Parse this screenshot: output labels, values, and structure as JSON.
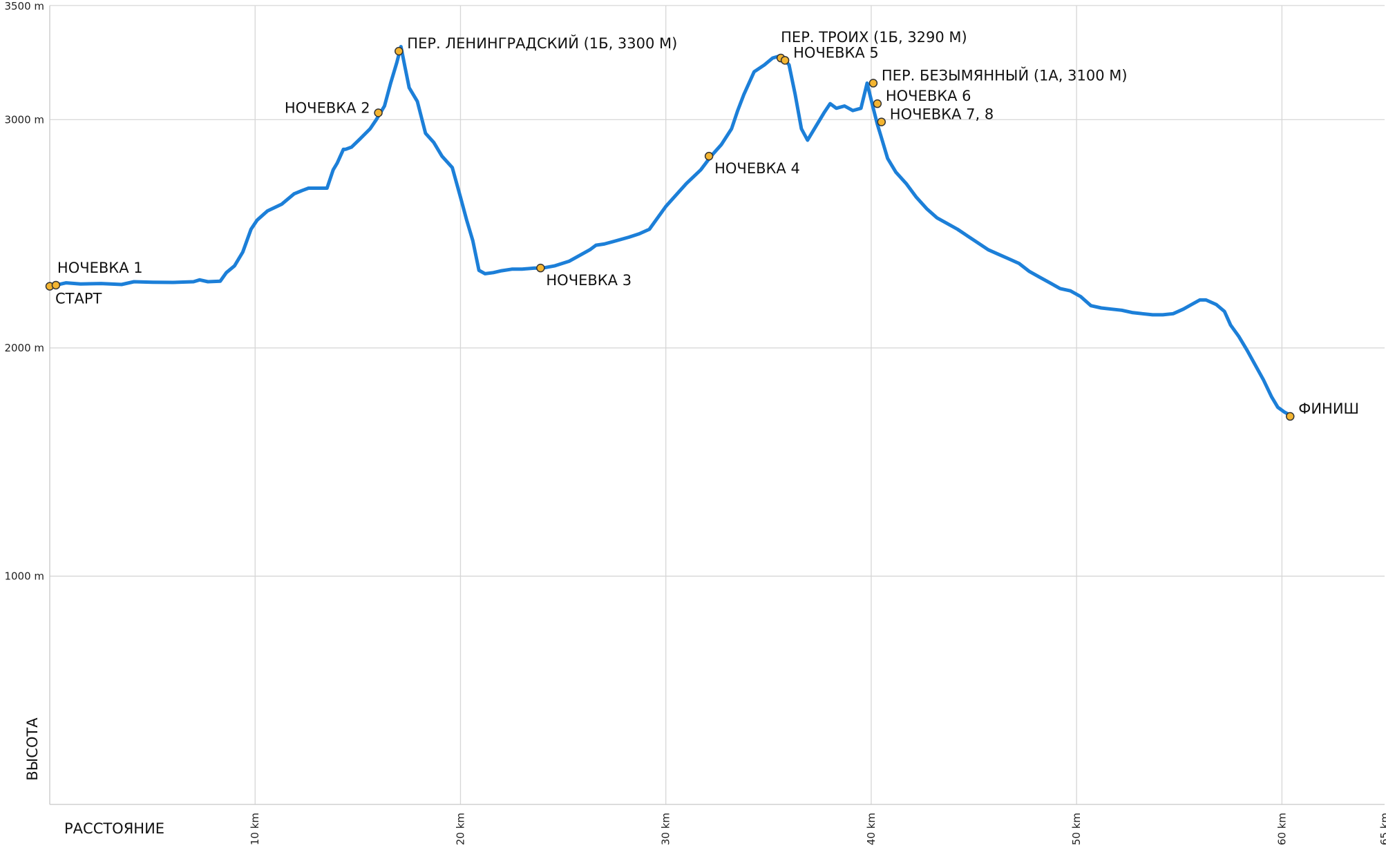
{
  "chart_data": {
    "type": "line",
    "title": "",
    "xlabel": "РАССТОЯНИЕ",
    "ylabel": "ВЫСОТА",
    "xlim": [
      0,
      65
    ],
    "ylim": [
      0,
      3500
    ],
    "x_ticks": [
      {
        "value": 10,
        "label": "10 km"
      },
      {
        "value": 20,
        "label": "20 km"
      },
      {
        "value": 30,
        "label": "30 km"
      },
      {
        "value": 40,
        "label": "40 km"
      },
      {
        "value": 50,
        "label": "50 km"
      },
      {
        "value": 60,
        "label": "60 km"
      },
      {
        "value": 65,
        "label": "65 km"
      }
    ],
    "y_ticks": [
      {
        "value": 1000,
        "label": "1000 m"
      },
      {
        "value": 2000,
        "label": "2000 m"
      },
      {
        "value": 3000,
        "label": "3000 m"
      },
      {
        "value": 3500,
        "label": "3500 m"
      }
    ],
    "grid": true,
    "series": [
      {
        "color": "#1c7fd8",
        "x": [
          0,
          0.3,
          0.8,
          1.5,
          2.5,
          3.5,
          4.1,
          5.0,
          6.0,
          7.0,
          7.3,
          7.7,
          8.3,
          8.6,
          9.0,
          9.4,
          9.8,
          10.1,
          10.6,
          11.3,
          11.9,
          12.3,
          12.6,
          13.0,
          13.5,
          13.8,
          14.0,
          14.3,
          14.4,
          14.7,
          15.1,
          15.6,
          15.9,
          16.3,
          16.6,
          16.9,
          17.1,
          17.3,
          17.5,
          17.9,
          18.3,
          18.7,
          19.1,
          19.6,
          20.0,
          20.3,
          20.6,
          20.9,
          21.2,
          21.6,
          22.0,
          22.5,
          23.0,
          23.6,
          24.0,
          24.6,
          25.3,
          25.9,
          26.3,
          26.6,
          27.0,
          27.6,
          28.2,
          28.7,
          29.2,
          29.6,
          30.0,
          30.6,
          31.0,
          31.7,
          32.2,
          32.7,
          33.2,
          33.5,
          33.8,
          34.3,
          34.8,
          35.2,
          35.6,
          35.8,
          36.0,
          36.3,
          36.6,
          36.9,
          37.3,
          37.7,
          38.0,
          38.3,
          38.7,
          39.1,
          39.5,
          39.8,
          40.1,
          40.3,
          40.5,
          40.8,
          41.2,
          41.7,
          42.2,
          42.7,
          43.2,
          43.7,
          44.2,
          44.7,
          45.2,
          45.7,
          46.2,
          46.7,
          47.2,
          47.7,
          48.2,
          48.7,
          49.2,
          49.7,
          50.2,
          50.7,
          51.2,
          51.7,
          52.2,
          52.7,
          53.2,
          53.7,
          54.2,
          54.7,
          55.2,
          55.6,
          56.0,
          56.3,
          56.8,
          57.2,
          57.5,
          57.9,
          58.3,
          58.7,
          59.1,
          59.5,
          59.8,
          60.1,
          60.3,
          60.4
        ],
        "y": [
          2270,
          2275,
          2285,
          2280,
          2282,
          2278,
          2290,
          2288,
          2287,
          2290,
          2298,
          2290,
          2292,
          2330,
          2360,
          2420,
          2520,
          2560,
          2600,
          2630,
          2675,
          2690,
          2700,
          2700,
          2700,
          2780,
          2810,
          2870,
          2870,
          2880,
          2915,
          2960,
          3000,
          3060,
          3160,
          3250,
          3320,
          3230,
          3140,
          3080,
          2940,
          2900,
          2840,
          2790,
          2660,
          2560,
          2470,
          2340,
          2325,
          2330,
          2338,
          2345,
          2345,
          2350,
          2350,
          2360,
          2380,
          2410,
          2430,
          2450,
          2455,
          2470,
          2485,
          2500,
          2520,
          2570,
          2620,
          2680,
          2720,
          2780,
          2840,
          2890,
          2960,
          3040,
          3110,
          3210,
          3240,
          3270,
          3280,
          3260,
          3240,
          3110,
          2960,
          2910,
          2970,
          3030,
          3070,
          3050,
          3060,
          3040,
          3050,
          3160,
          3050,
          2980,
          2920,
          2830,
          2770,
          2720,
          2660,
          2610,
          2570,
          2545,
          2520,
          2490,
          2460,
          2430,
          2410,
          2390,
          2370,
          2335,
          2310,
          2285,
          2260,
          2250,
          2225,
          2185,
          2175,
          2170,
          2165,
          2155,
          2150,
          2145,
          2145,
          2150,
          2170,
          2190,
          2210,
          2210,
          2190,
          2160,
          2100,
          2050,
          1990,
          1925,
          1860,
          1785,
          1740,
          1720,
          1710,
          1700
        ]
      }
    ],
    "waypoints": [
      {
        "label": "СТАРТ",
        "x": 0.0,
        "y": 2270,
        "label_pos": "below-right"
      },
      {
        "label": "НОЧЕВКА 1",
        "x": 0.3,
        "y": 2275,
        "label_pos": "above-right"
      },
      {
        "label": "НОЧЕВКА 2",
        "x": 16.0,
        "y": 3030,
        "label_pos": "left"
      },
      {
        "label": "ПЕР. ЛЕНИНГРАДСКИЙ (1Б, 3300 М)",
        "x": 17.0,
        "y": 3300,
        "label_pos": "right"
      },
      {
        "label": "НОЧЕВКА 3",
        "x": 23.9,
        "y": 2350,
        "label_pos": "below-right"
      },
      {
        "label": "НОЧЕВКА 4",
        "x": 32.1,
        "y": 2840,
        "label_pos": "below-right"
      },
      {
        "label": "ПЕР. ТРОИХ (1Б, 3290 М)",
        "x": 35.6,
        "y": 3270,
        "label_pos": "above"
      },
      {
        "label": "НОЧЕВКА 5",
        "x": 35.8,
        "y": 3260,
        "label_pos": "right"
      },
      {
        "label": "ПЕР. БЕЗЫМЯННЫЙ (1А, 3100 М)",
        "x": 40.1,
        "y": 3160,
        "label_pos": "right"
      },
      {
        "label": "НОЧЕВКА 6",
        "x": 40.3,
        "y": 3070,
        "label_pos": "right"
      },
      {
        "label": "НОЧЕВКА 7, 8",
        "x": 40.5,
        "y": 2990,
        "label_pos": "right"
      },
      {
        "label": "ФИНИШ",
        "x": 60.4,
        "y": 1700,
        "label_pos": "right"
      }
    ]
  }
}
